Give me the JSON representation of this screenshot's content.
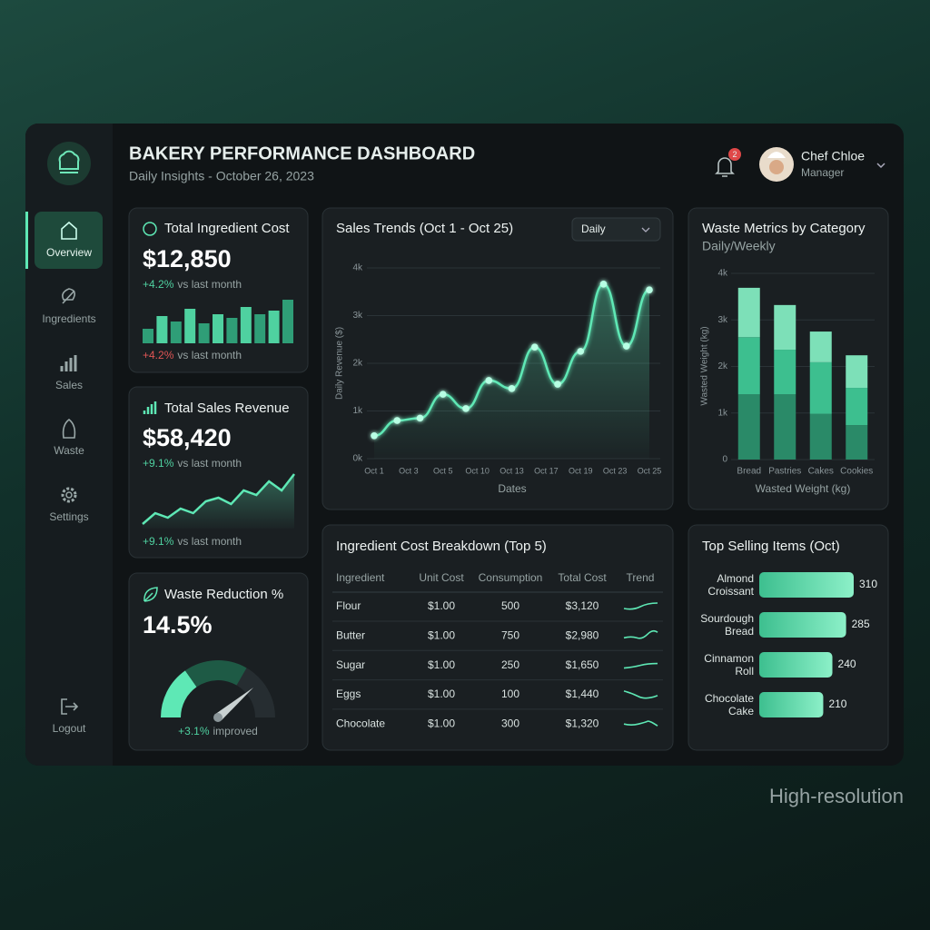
{
  "header": {
    "title": "BAKERY PERFORMANCE DASHBOARD",
    "subtitle": "Daily Insights - October 26, 2023",
    "notification_count": "2",
    "user_name": "Chef Chloe",
    "user_role": "Manager"
  },
  "nav": {
    "items": [
      "Overview",
      "Ingredients",
      "Sales",
      "Waste",
      "Settings"
    ],
    "logout": "Logout"
  },
  "kpis": [
    {
      "title": "Total Ingredient Cost",
      "value": "$12,850",
      "change": "+4.2%",
      "change_note": "vs last month",
      "trend": [
        16,
        30,
        24,
        38,
        22,
        32,
        28,
        40,
        32,
        36,
        48
      ],
      "footer_change": "+4.2%",
      "footer_note": "vs last month"
    },
    {
      "title": "Total Sales Revenue",
      "value": "$58,420",
      "change": "+9.1%",
      "change_note": "vs last month",
      "trend": [
        5,
        17,
        12,
        22,
        17,
        30,
        34,
        27,
        42,
        37,
        52,
        42,
        60
      ],
      "footer_change": "+9.1%",
      "footer_note": "vs last month"
    },
    {
      "title": "Waste Reduction %",
      "value": "14.5%",
      "footer_change": "+3.1%",
      "footer_note": "improved"
    }
  ],
  "chart_data": [
    {
      "type": "line",
      "title": "Sales Trends (Oct 1 - Oct 25)",
      "dropdown": "Daily",
      "y_label": "Daily Revenue ($)",
      "x_label": "Dates",
      "xticks": [
        "Oct 1",
        "Oct 3",
        "Oct 5",
        "Oct 10",
        "Oct 13",
        "Oct 17",
        "Oct 19",
        "Oct 23",
        "Oct 25"
      ],
      "values": [
        480,
        800,
        850,
        1350,
        1050,
        1640,
        1470,
        2340,
        1560,
        2250,
        3660,
        2360,
        3540
      ],
      "ylim": [
        0,
        4000
      ],
      "yticks": [
        {
          "value": 0,
          "label": "0k"
        },
        {
          "value": 1000,
          "label": "1k"
        },
        {
          "value": 2000,
          "label": "2k"
        },
        {
          "value": 3000,
          "label": "3k"
        },
        {
          "value": 4000,
          "label": "4k"
        }
      ],
      "color": "#5ee8b5",
      "grid": true
    },
    {
      "type": "bar",
      "stacked": true,
      "title": "Waste Metrics by Category",
      "subtitle": "Daily/Weekly",
      "y_label": "Wasted Weight (kg)",
      "x_label": "Wasted Weight (kg)",
      "categories": [
        "Bread",
        "Pastries",
        "Cakes",
        "Cookies"
      ],
      "series": [
        {
          "color": "#2a8a68",
          "values": [
            1400,
            1400,
            980,
            740
          ]
        },
        {
          "color": "#3dbf8f",
          "values": [
            1230,
            960,
            1110,
            800
          ]
        },
        {
          "color": "#7de0b8",
          "values": [
            1060,
            960,
            660,
            700
          ]
        }
      ],
      "ylim": [
        0,
        4000
      ],
      "yticks": [
        0,
        {
          "value": 1000,
          "label": "1k"
        },
        {
          "value": 2000,
          "label": "2k"
        },
        {
          "value": 3000,
          "label": "3k"
        },
        {
          "value": 4000,
          "label": "4k"
        }
      ],
      "grid": true
    },
    {
      "type": "bar",
      "orientation": "horizontal",
      "title": "Top Selling Items (Oct)",
      "categories": [
        "Almond Croissant",
        "Sourdough Bread",
        "Cinnamon Roll",
        "Chocolate Cake"
      ],
      "values": [
        310,
        285,
        240,
        210
      ],
      "color": "#5ee8b5"
    }
  ],
  "table": {
    "title": "Ingredient Cost Breakdown (Top 5)",
    "columns": [
      "Ingredient",
      "Unit Cost",
      "Consumption",
      "Total Cost",
      "Trend"
    ],
    "rows": [
      [
        "Flour",
        "$1.00",
        "500",
        "$3,120"
      ],
      [
        "Butter",
        "$1.00",
        "750",
        "$2,980"
      ],
      [
        "Sugar",
        "$1.00",
        "250",
        "$1,650"
      ],
      [
        "Eggs",
        "$1.00",
        "100",
        "$1,440"
      ],
      [
        "Chocolate",
        "$1.00",
        "300",
        "$1,320"
      ]
    ]
  },
  "footer": "High-resolution"
}
